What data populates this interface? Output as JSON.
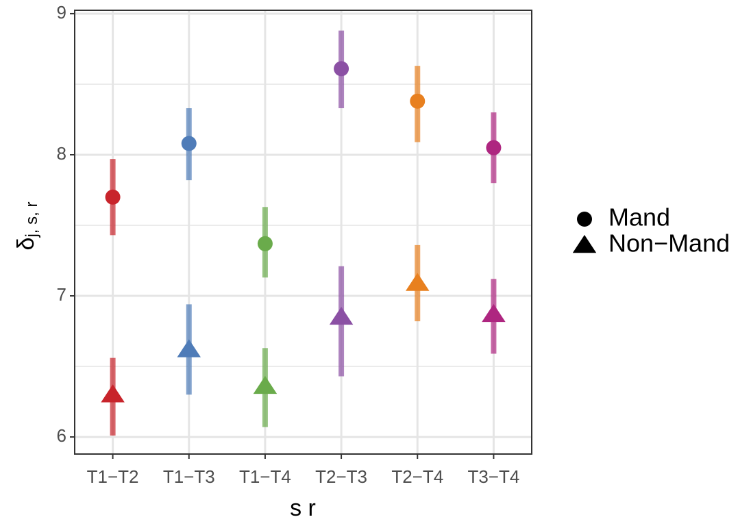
{
  "chart_data": {
    "type": "pointrange",
    "xlabel": "s r",
    "ylabel": "δ",
    "ylabel_sub": "j, s, r",
    "categories": [
      "T1−T2",
      "T1−T3",
      "T1−T4",
      "T2−T3",
      "T2−T4",
      "T3−T4"
    ],
    "colors": [
      "#c8242b",
      "#4f7cb8",
      "#6aab4b",
      "#8b50a4",
      "#e8801f",
      "#ae2680"
    ],
    "series": [
      {
        "name": "Mand",
        "shape": "circle",
        "values": [
          7.7,
          8.08,
          7.37,
          8.61,
          8.38,
          8.05
        ],
        "lower": [
          7.43,
          7.82,
          7.13,
          8.33,
          8.09,
          7.8
        ],
        "upper": [
          7.97,
          8.33,
          7.63,
          8.88,
          8.63,
          8.3
        ]
      },
      {
        "name": "Non−Mand",
        "shape": "triangle",
        "values": [
          6.3,
          6.62,
          6.36,
          6.85,
          7.09,
          6.87
        ],
        "lower": [
          6.01,
          6.3,
          6.07,
          6.43,
          6.82,
          6.59
        ],
        "upper": [
          6.56,
          6.94,
          6.63,
          7.21,
          7.36,
          7.12
        ]
      }
    ],
    "ylim": [
      5.879,
      9.024
    ],
    "yticks": [
      6,
      7,
      8,
      9
    ],
    "minor_yticks": [
      6.5,
      7.5,
      8.5
    ],
    "grid": true,
    "legend": "right"
  }
}
